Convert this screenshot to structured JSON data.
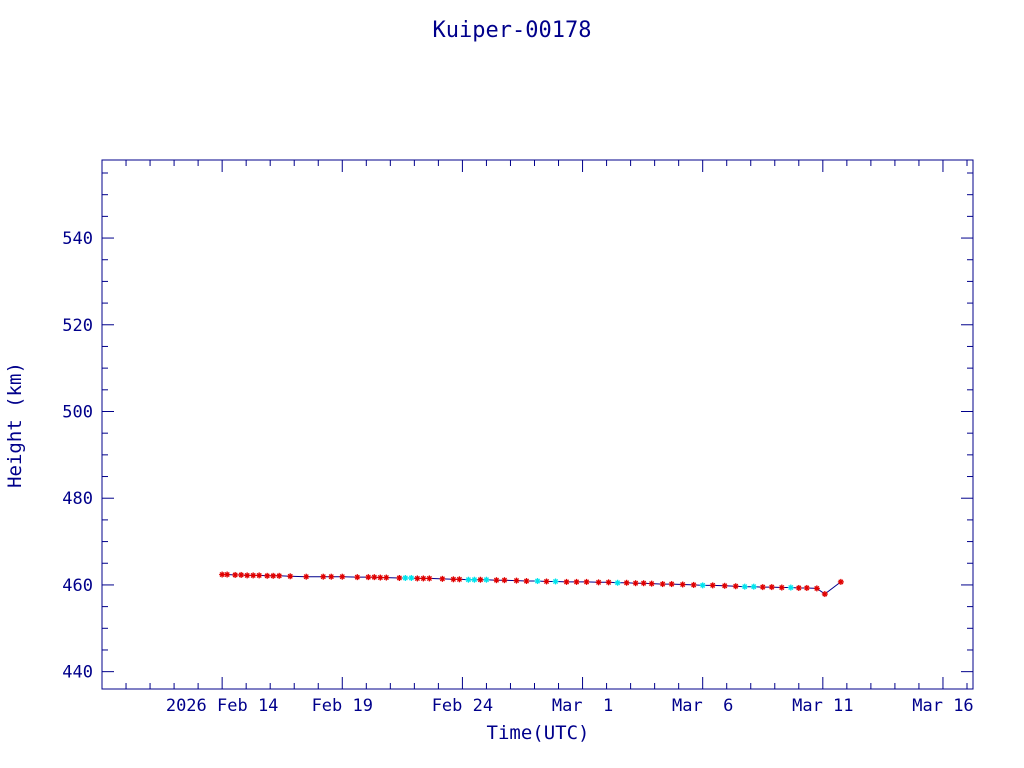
{
  "chart_data": {
    "type": "line",
    "title": "Kuiper-00178",
    "xlabel": "Time(UTC)",
    "ylabel": "Height (km)",
    "x_tick_labels": [
      {
        "label": "2026 Feb 14",
        "date": "2026-02-14"
      },
      {
        "label": "Feb 19",
        "date": "2026-02-19"
      },
      {
        "label": "Feb 24",
        "date": "2026-02-24"
      },
      {
        "label": "Mar  1",
        "date": "2026-03-01"
      },
      {
        "label": "Mar  6",
        "date": "2026-03-06"
      },
      {
        "label": "Mar 11",
        "date": "2026-03-11"
      },
      {
        "label": "Mar 16",
        "date": "2026-03-16"
      }
    ],
    "y_ticks": [
      440,
      460,
      480,
      500,
      520,
      540
    ],
    "xlim": [
      "2026-02-09T00:00",
      "2026-03-17T06:00"
    ],
    "ylim": [
      436,
      558
    ],
    "grid": false,
    "colors": {
      "axes": "#00008b",
      "line": "#00008b",
      "marker_primary": "#e00000",
      "marker_secondary": "#00e5ee"
    },
    "series": [
      {
        "marker": "asterisk",
        "points": [
          {
            "t": "2026-02-14T00:00",
            "h": 462.4,
            "m": "red"
          },
          {
            "t": "2026-02-14T05:00",
            "h": 462.4,
            "m": "red"
          },
          {
            "t": "2026-02-14T13:00",
            "h": 462.3,
            "m": "red"
          },
          {
            "t": "2026-02-14T19:00",
            "h": 462.3,
            "m": "red"
          },
          {
            "t": "2026-02-15T01:00",
            "h": 462.2,
            "m": "red"
          },
          {
            "t": "2026-02-15T07:00",
            "h": 462.2,
            "m": "red"
          },
          {
            "t": "2026-02-15T13:00",
            "h": 462.2,
            "m": "red"
          },
          {
            "t": "2026-02-15T21:00",
            "h": 462.1,
            "m": "red"
          },
          {
            "t": "2026-02-16T03:00",
            "h": 462.1,
            "m": "red"
          },
          {
            "t": "2026-02-16T09:00",
            "h": 462.1,
            "m": "red"
          },
          {
            "t": "2026-02-16T20:00",
            "h": 462.0,
            "m": "red"
          },
          {
            "t": "2026-02-17T12:00",
            "h": 461.9,
            "m": "red"
          },
          {
            "t": "2026-02-18T05:00",
            "h": 461.9,
            "m": "red"
          },
          {
            "t": "2026-02-18T13:00",
            "h": 461.9,
            "m": "red"
          },
          {
            "t": "2026-02-19T00:00",
            "h": 461.9,
            "m": "red"
          },
          {
            "t": "2026-02-19T15:00",
            "h": 461.8,
            "m": "red"
          },
          {
            "t": "2026-02-20T02:00",
            "h": 461.8,
            "m": "red"
          },
          {
            "t": "2026-02-20T08:00",
            "h": 461.8,
            "m": "red"
          },
          {
            "t": "2026-02-20T14:00",
            "h": 461.7,
            "m": "red"
          },
          {
            "t": "2026-02-20T20:00",
            "h": 461.7,
            "m": "red"
          },
          {
            "t": "2026-02-21T09:00",
            "h": 461.6,
            "m": "red"
          },
          {
            "t": "2026-02-21T15:00",
            "h": 461.6,
            "m": "cyan"
          },
          {
            "t": "2026-02-21T21:00",
            "h": 461.6,
            "m": "cyan"
          },
          {
            "t": "2026-02-22T03:00",
            "h": 461.5,
            "m": "red"
          },
          {
            "t": "2026-02-22T09:00",
            "h": 461.5,
            "m": "red"
          },
          {
            "t": "2026-02-22T15:00",
            "h": 461.5,
            "m": "red"
          },
          {
            "t": "2026-02-23T04:00",
            "h": 461.4,
            "m": "red"
          },
          {
            "t": "2026-02-23T15:00",
            "h": 461.3,
            "m": "red"
          },
          {
            "t": "2026-02-23T21:00",
            "h": 461.3,
            "m": "red"
          },
          {
            "t": "2026-02-24T06:00",
            "h": 461.2,
            "m": "cyan"
          },
          {
            "t": "2026-02-24T12:00",
            "h": 461.2,
            "m": "cyan"
          },
          {
            "t": "2026-02-24T18:00",
            "h": 461.2,
            "m": "red"
          },
          {
            "t": "2026-02-25T00:00",
            "h": 461.2,
            "m": "cyan"
          },
          {
            "t": "2026-02-25T10:00",
            "h": 461.1,
            "m": "red"
          },
          {
            "t": "2026-02-25T18:00",
            "h": 461.1,
            "m": "red"
          },
          {
            "t": "2026-02-26T06:00",
            "h": 461.0,
            "m": "red"
          },
          {
            "t": "2026-02-26T16:00",
            "h": 460.9,
            "m": "red"
          },
          {
            "t": "2026-02-27T03:00",
            "h": 460.9,
            "m": "cyan"
          },
          {
            "t": "2026-02-27T12:00",
            "h": 460.8,
            "m": "red"
          },
          {
            "t": "2026-02-27T21:00",
            "h": 460.8,
            "m": "cyan"
          },
          {
            "t": "2026-02-28T08:00",
            "h": 460.7,
            "m": "red"
          },
          {
            "t": "2026-02-28T18:00",
            "h": 460.7,
            "m": "red"
          },
          {
            "t": "2026-03-01T04:00",
            "h": 460.7,
            "m": "red"
          },
          {
            "t": "2026-03-01T16:00",
            "h": 460.6,
            "m": "red"
          },
          {
            "t": "2026-03-02T02:00",
            "h": 460.6,
            "m": "red"
          },
          {
            "t": "2026-03-02T11:00",
            "h": 460.5,
            "m": "cyan"
          },
          {
            "t": "2026-03-02T20:00",
            "h": 460.5,
            "m": "red"
          },
          {
            "t": "2026-03-03T05:00",
            "h": 460.4,
            "m": "red"
          },
          {
            "t": "2026-03-03T13:00",
            "h": 460.4,
            "m": "red"
          },
          {
            "t": "2026-03-03T21:00",
            "h": 460.3,
            "m": "red"
          },
          {
            "t": "2026-03-04T08:00",
            "h": 460.2,
            "m": "red"
          },
          {
            "t": "2026-03-04T17:00",
            "h": 460.2,
            "m": "red"
          },
          {
            "t": "2026-03-05T04:00",
            "h": 460.1,
            "m": "red"
          },
          {
            "t": "2026-03-05T15:00",
            "h": 460.0,
            "m": "red"
          },
          {
            "t": "2026-03-06T00:00",
            "h": 459.9,
            "m": "cyan"
          },
          {
            "t": "2026-03-06T10:00",
            "h": 459.9,
            "m": "red"
          },
          {
            "t": "2026-03-06T22:00",
            "h": 459.8,
            "m": "red"
          },
          {
            "t": "2026-03-07T09:00",
            "h": 459.7,
            "m": "red"
          },
          {
            "t": "2026-03-07T18:00",
            "h": 459.6,
            "m": "cyan"
          },
          {
            "t": "2026-03-08T03:00",
            "h": 459.6,
            "m": "cyan"
          },
          {
            "t": "2026-03-08T12:00",
            "h": 459.5,
            "m": "red"
          },
          {
            "t": "2026-03-08T21:00",
            "h": 459.5,
            "m": "red"
          },
          {
            "t": "2026-03-09T07:00",
            "h": 459.4,
            "m": "red"
          },
          {
            "t": "2026-03-09T16:00",
            "h": 459.4,
            "m": "cyan"
          },
          {
            "t": "2026-03-10T00:00",
            "h": 459.3,
            "m": "red"
          },
          {
            "t": "2026-03-10T08:00",
            "h": 459.3,
            "m": "red"
          },
          {
            "t": "2026-03-10T18:00",
            "h": 459.2,
            "m": "red"
          },
          {
            "t": "2026-03-11T02:00",
            "h": 457.9,
            "m": "red"
          },
          {
            "t": "2026-03-11T18:00",
            "h": 460.7,
            "m": "red"
          }
        ]
      }
    ]
  }
}
